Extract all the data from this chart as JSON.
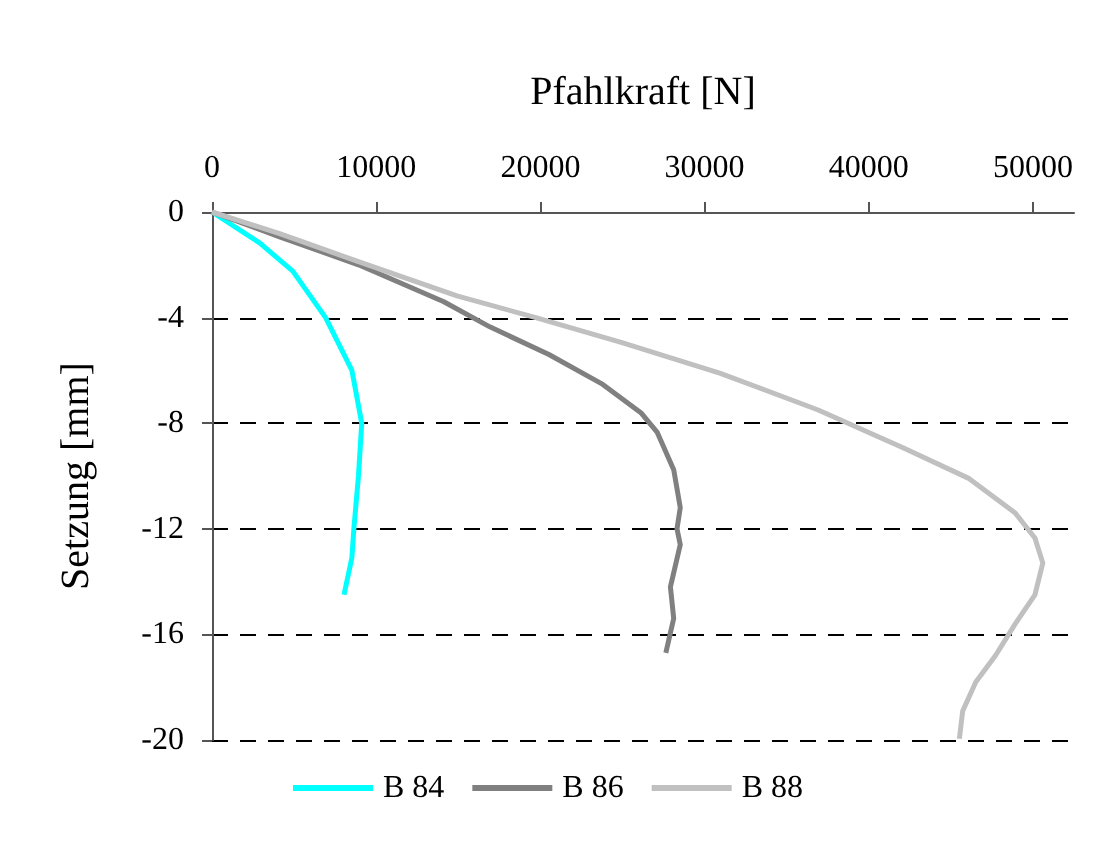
{
  "chart_data": {
    "type": "line",
    "xlabel": "Pfahlkraft [N]",
    "ylabel": "Setzung [mm]",
    "xlim": [
      0,
      52500
    ],
    "xticks": [
      0,
      10000,
      20000,
      30000,
      40000,
      50000
    ],
    "ylim": [
      -20,
      0
    ],
    "yticks": [
      -20,
      -16,
      -12,
      -8,
      -4,
      0
    ],
    "grid": "y",
    "legend": "bottom",
    "marker": "none",
    "line_style": "solid",
    "series": [
      {
        "name": "B 84",
        "color": "#00ffff",
        "x": [
          0,
          2920,
          4920,
          6920,
          8520,
          9120,
          8920,
          8640,
          8520,
          8040
        ],
        "values": [
          0,
          -1.18,
          -2.24,
          -4.0,
          -6.0,
          -8.0,
          -10,
          -12,
          -13.1,
          -14.5
        ]
      },
      {
        "name": "B 86",
        "color": "#808080",
        "x": [
          0,
          4120,
          8920,
          14120,
          16920,
          20520,
          23720,
          26120,
          27120,
          28120,
          28520,
          28320,
          28520,
          27920,
          28120,
          27640
        ],
        "values": [
          0,
          -0.94,
          -2.0,
          -3.4,
          -4.35,
          -5.4,
          -6.5,
          -7.6,
          -8.35,
          -9.76,
          -11.2,
          -12,
          -12.6,
          -14.2,
          -15.4,
          -16.7
        ]
      },
      {
        "name": "B 88",
        "color": "#c0c0c0",
        "x": [
          0,
          4120,
          8920,
          14920,
          19720,
          24920,
          30920,
          36920,
          42120,
          46120,
          48920,
          50120,
          50600,
          50120,
          48920,
          47720,
          46520,
          45720,
          45520
        ],
        "values": [
          0,
          -0.82,
          -1.88,
          -3.18,
          -4.0,
          -4.94,
          -6.1,
          -7.5,
          -8.94,
          -10.1,
          -11.4,
          -12.35,
          -13.3,
          -14.5,
          -15.6,
          -16.8,
          -17.8,
          -18.9,
          -19.95
        ]
      }
    ]
  }
}
